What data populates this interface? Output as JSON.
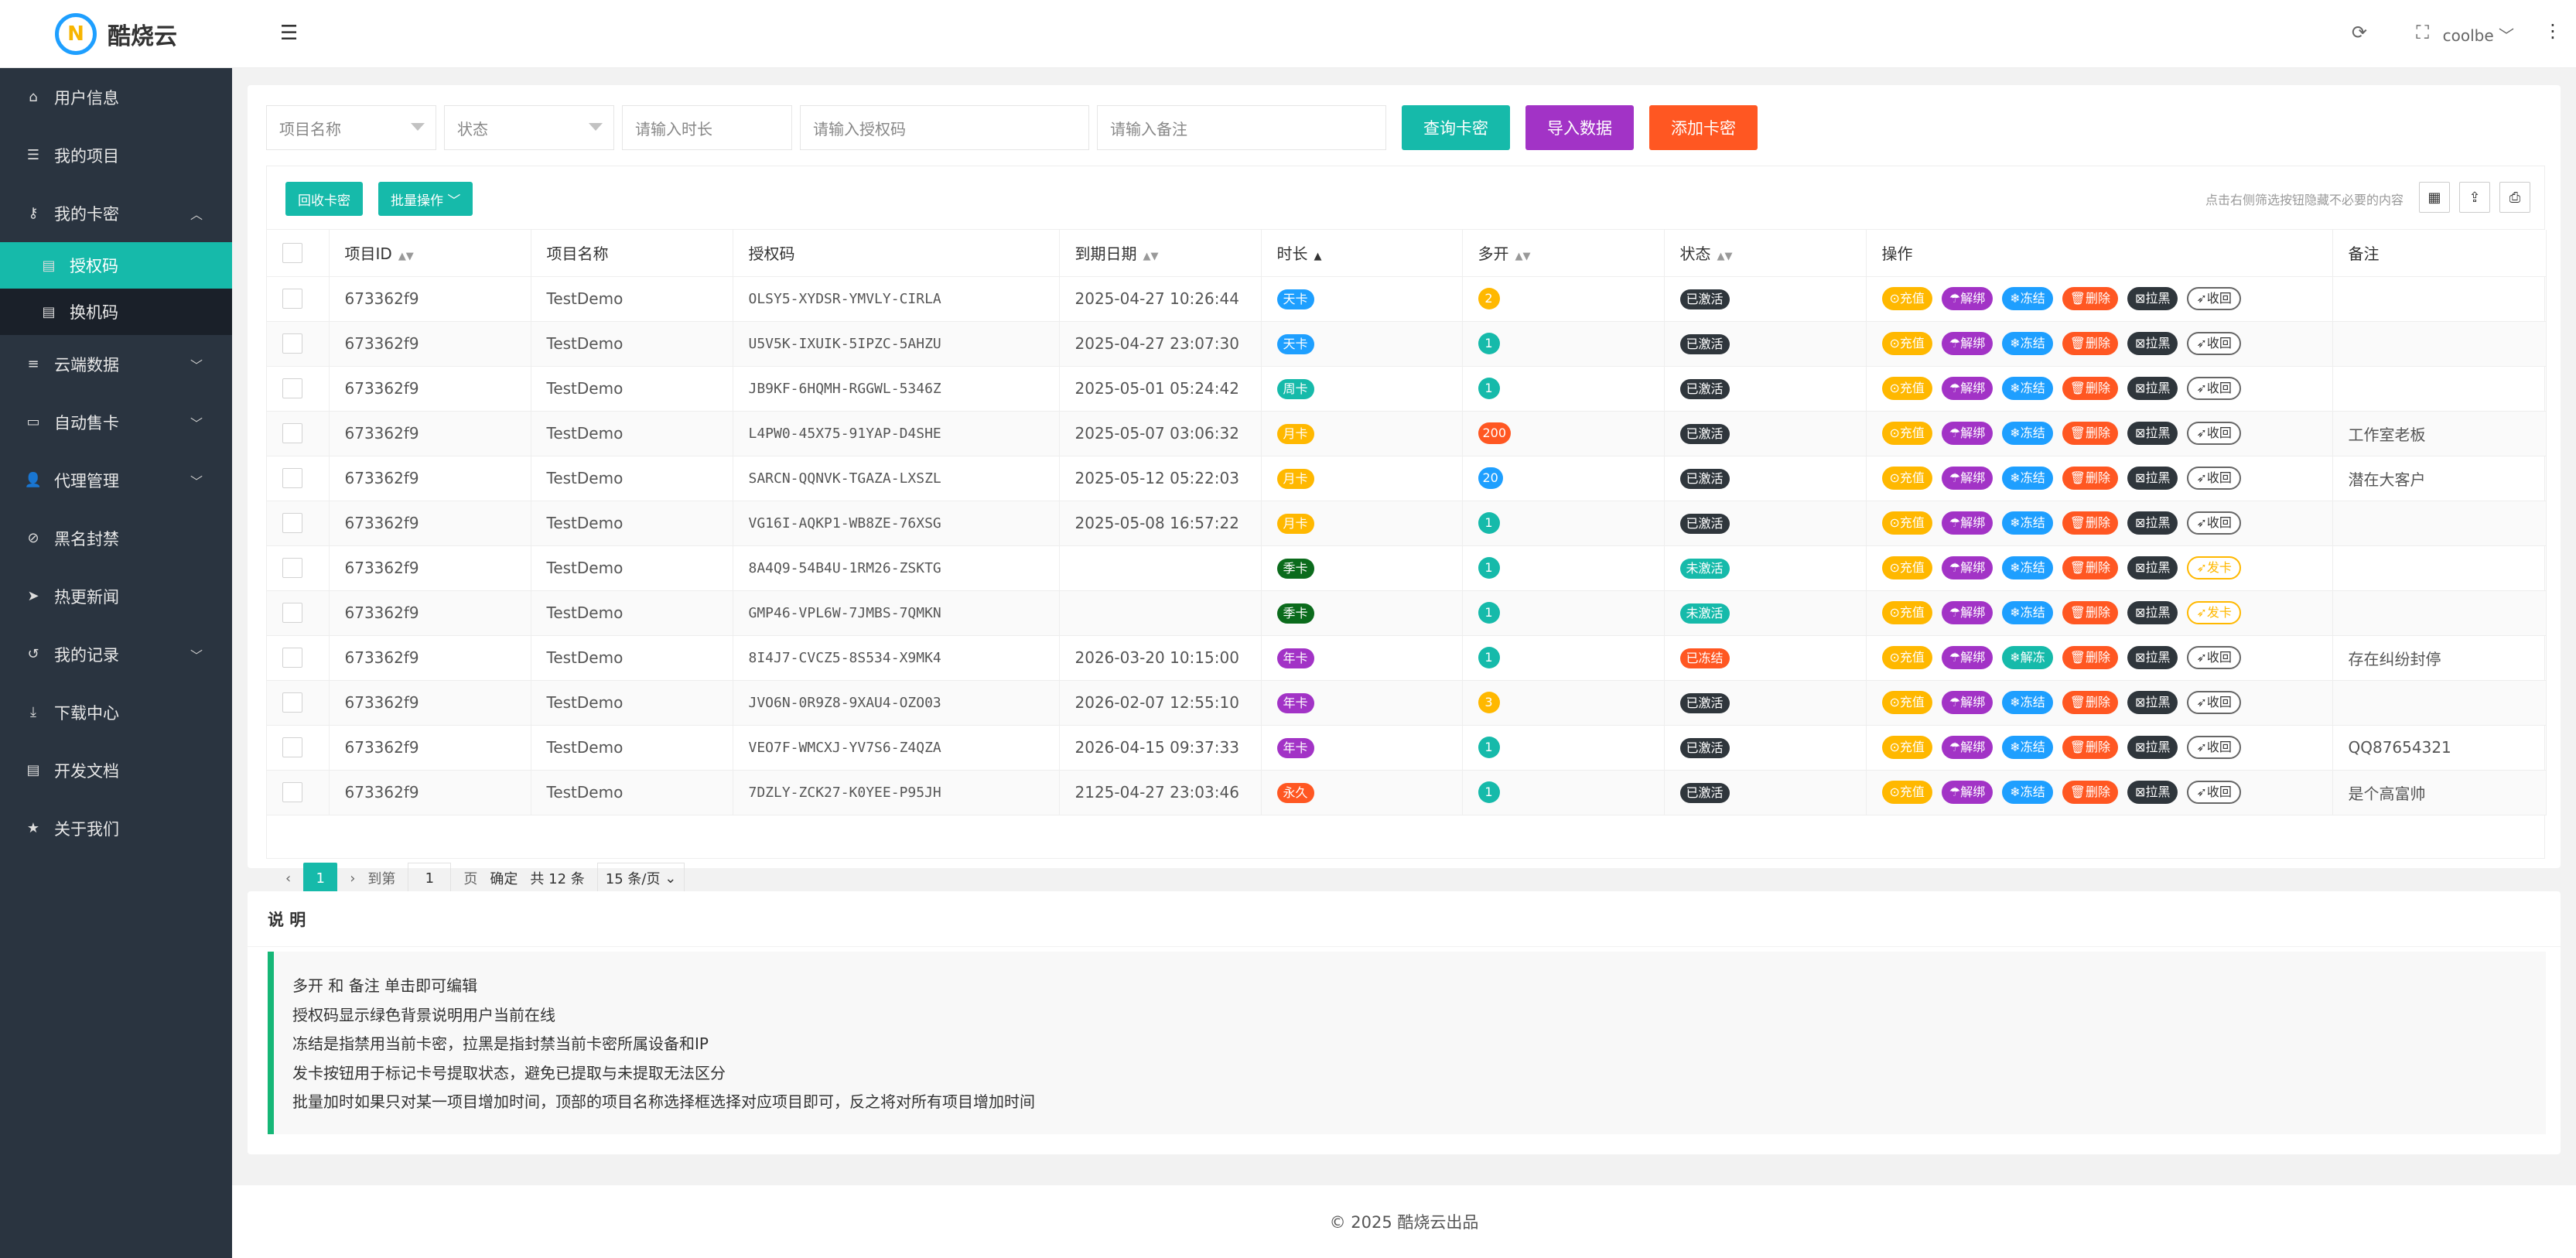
{
  "app": {
    "logo_mark": "N",
    "name": "酷烧云"
  },
  "sidebar": {
    "items": [
      {
        "label": "用户信息",
        "icon": "home-icon"
      },
      {
        "label": "我的项目",
        "icon": "list-icon"
      },
      {
        "label": "我的卡密",
        "icon": "key-icon",
        "expanded": true
      },
      {
        "label": "云端数据",
        "icon": "database-icon"
      },
      {
        "label": "自动售卡",
        "icon": "card-icon"
      },
      {
        "label": "代理管理",
        "icon": "users-icon"
      },
      {
        "label": "黑名封禁",
        "icon": "ban-icon"
      },
      {
        "label": "热更新闻",
        "icon": "send-icon"
      },
      {
        "label": "我的记录",
        "icon": "history-icon"
      },
      {
        "label": "下载中心",
        "icon": "download-icon"
      },
      {
        "label": "开发文档",
        "icon": "doc-icon"
      },
      {
        "label": "关于我们",
        "icon": "star-icon"
      }
    ],
    "sub_items": [
      {
        "label": "授权码",
        "active": true
      },
      {
        "label": "换机码",
        "active": false
      }
    ]
  },
  "header": {
    "user": "coolbe"
  },
  "filters": {
    "project_placeholder": "项目名称",
    "status_placeholder": "状态",
    "duration_placeholder": "请输入时长",
    "code_placeholder": "请输入授权码",
    "remark_placeholder": "请输入备注",
    "query_label": "查询卡密",
    "import_label": "导入数据",
    "add_label": "添加卡密"
  },
  "toolbar": {
    "recycle_label": "回收卡密",
    "batch_label": "批量操作",
    "hint": "点击右侧筛选按钮隐藏不必要的内容"
  },
  "table": {
    "headers": {
      "project_id": "项目ID",
      "project_name": "项目名称",
      "code": "授权码",
      "expire": "到期日期",
      "duration": "时长",
      "multi": "多开",
      "status": "状态",
      "ops": "操作",
      "remark": "备注"
    },
    "op_labels": {
      "recharge": "充值",
      "unbind": "解绑",
      "freeze": "冻结",
      "unfreeze": "解冻",
      "delete": "删除",
      "blacklist": "拉黑",
      "recycle": "收回",
      "issue": "发卡"
    },
    "rows": [
      {
        "id": "673362f9",
        "name": "TestDemo",
        "code": "OLSY5-XYDSR-YMVLY-CIRLA",
        "expire": "2025-04-27 10:26:44",
        "duration": "天卡",
        "multi": "2",
        "status": "已激活",
        "remark": ""
      },
      {
        "id": "673362f9",
        "name": "TestDemo",
        "code": "U5V5K-IXUIK-5IPZC-5AHZU",
        "expire": "2025-04-27 23:07:30",
        "duration": "天卡",
        "multi": "1",
        "status": "已激活",
        "remark": ""
      },
      {
        "id": "673362f9",
        "name": "TestDemo",
        "code": "JB9KF-6HQMH-RGGWL-5346Z",
        "expire": "2025-05-01 05:24:42",
        "duration": "周卡",
        "multi": "1",
        "status": "已激活",
        "remark": ""
      },
      {
        "id": "673362f9",
        "name": "TestDemo",
        "code": "L4PW0-45X75-91YAP-D4SHE",
        "expire": "2025-05-07 03:06:32",
        "duration": "月卡",
        "multi": "200",
        "status": "已激活",
        "remark": "工作室老板"
      },
      {
        "id": "673362f9",
        "name": "TestDemo",
        "code": "SARCN-QQNVK-TGAZA-LXSZL",
        "expire": "2025-05-12 05:22:03",
        "duration": "月卡",
        "multi": "20",
        "status": "已激活",
        "remark": "潜在大客户"
      },
      {
        "id": "673362f9",
        "name": "TestDemo",
        "code": "VG16I-AQKP1-WB8ZE-76XSG",
        "expire": "2025-05-08 16:57:22",
        "duration": "月卡",
        "multi": "1",
        "status": "已激活",
        "remark": ""
      },
      {
        "id": "673362f9",
        "name": "TestDemo",
        "code": "8A4Q9-54B4U-1RM26-ZSKTG",
        "expire": "",
        "duration": "季卡",
        "multi": "1",
        "status": "未激活",
        "remark": ""
      },
      {
        "id": "673362f9",
        "name": "TestDemo",
        "code": "GMP46-VPL6W-7JMBS-7QMKN",
        "expire": "",
        "duration": "季卡",
        "multi": "1",
        "status": "未激活",
        "remark": ""
      },
      {
        "id": "673362f9",
        "name": "TestDemo",
        "code": "8I4J7-CVCZ5-8S534-X9MK4",
        "expire": "2026-03-20 10:15:00",
        "duration": "年卡",
        "multi": "1",
        "status": "已冻结",
        "remark": "存在纠纷封停"
      },
      {
        "id": "673362f9",
        "name": "TestDemo",
        "code": "JVO6N-0R9Z8-9XAU4-OZO03",
        "expire": "2026-02-07 12:55:10",
        "duration": "年卡",
        "multi": "3",
        "status": "已激活",
        "remark": ""
      },
      {
        "id": "673362f9",
        "name": "TestDemo",
        "code": "VEO7F-WMCXJ-YV7S6-Z4QZA",
        "expire": "2026-04-15 09:37:33",
        "duration": "年卡",
        "multi": "1",
        "status": "已激活",
        "remark": "QQ87654321"
      },
      {
        "id": "673362f9",
        "name": "TestDemo",
        "code": "7DZLY-ZCK27-K0YEE-P95JH",
        "expire": "2125-04-27 23:03:46",
        "duration": "永久",
        "multi": "1",
        "status": "已激活",
        "remark": "是个高富帅"
      }
    ]
  },
  "pagination": {
    "current": "1",
    "goto_prefix": "到第",
    "page_input": "1",
    "page_suffix": "页",
    "confirm": "确定",
    "total": "共 12 条",
    "per_page": "15 条/页"
  },
  "notes": {
    "title": "说 明",
    "lines": [
      "多开 和 备注 单击即可编辑",
      "授权码显示绿色背景说明用户当前在线",
      "冻结是指禁用当前卡密，拉黑是指封禁当前卡密所属设备和IP",
      "发卡按钮用于标记卡号提取状态，避免已提取与未提取无法区分",
      "批量加时如果只对某一项目增加时间，顶部的项目名称选择框选择对应项目即可，反之将对所有项目增加时间"
    ]
  },
  "footer": {
    "text": "© 2025 酷烧云出品"
  },
  "colors": {
    "teal": "#16baaa",
    "purple": "#a233c6",
    "orange": "#ff5722",
    "yellow": "#ffb800",
    "blue": "#1e9fff",
    "dark": "#2f363c",
    "green": "#16b777",
    "sidebar": "#2a3440",
    "darkgreen": "#0b6b1c"
  }
}
